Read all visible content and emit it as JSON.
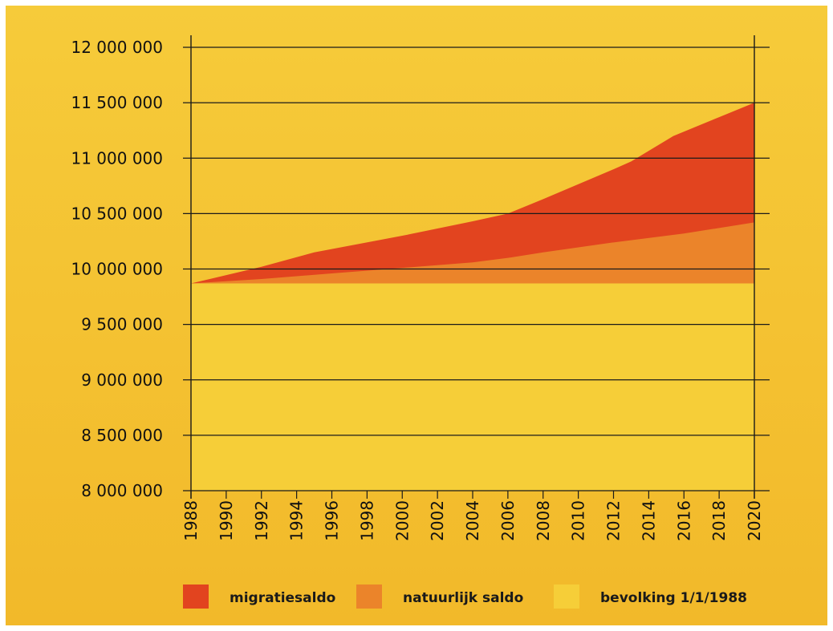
{
  "colors": {
    "migratiesaldo": "#e2441f",
    "natuurlijk_saldo": "#eb842a",
    "bevolking": "#f6ce38",
    "background_top": "#f6cb3a",
    "background_bottom": "#f2b92a",
    "axis": "#1a1a1a"
  },
  "chart_data": {
    "type": "area",
    "stacked": true,
    "title": "",
    "xlabel": "",
    "ylabel": "",
    "xlim": [
      1988,
      2020
    ],
    "ylim": [
      8000000,
      12000000
    ],
    "x_ticks": [
      1988,
      1990,
      1992,
      1994,
      1996,
      1998,
      2000,
      2002,
      2004,
      2006,
      2008,
      2010,
      2012,
      2014,
      2016,
      2018,
      2020
    ],
    "x_tick_labels": [
      "1988",
      "1990",
      "1992",
      "1994",
      "1996",
      "1998",
      "2000",
      "2002",
      "2004",
      "2006",
      "2008",
      "2010",
      "2012",
      "2014",
      "2016",
      "2018",
      "2020"
    ],
    "y_ticks": [
      8000000,
      8500000,
      9000000,
      9500000,
      10000000,
      10500000,
      11000000,
      11500000,
      12000000
    ],
    "y_tick_labels": [
      "8 000 000",
      "8 500 000",
      "9 000 000",
      "9 500 000",
      "10 000 000",
      "10 500 000",
      "11 000 000",
      "11 500 000",
      "12 000 000"
    ],
    "grid": true,
    "grid_axis": "y",
    "legend_position": "bottom",
    "baseline_value": 9870000,
    "series": [
      {
        "name": "bevolking 1/1/1988",
        "x": [
          1988,
          2020
        ],
        "top": [
          9870000,
          9870000
        ]
      },
      {
        "name": "natuurlijk saldo",
        "x": [
          1988,
          1992,
          1996,
          2000,
          2004,
          2006,
          2008,
          2012,
          2016,
          2020
        ],
        "top": [
          9870000,
          9910000,
          9960000,
          10010000,
          10060000,
          10100000,
          10150000,
          10240000,
          10320000,
          10420000
        ]
      },
      {
        "name": "migratiesaldo",
        "x": [
          1988,
          1992,
          1995,
          2000,
          2004,
          2006,
          2008,
          2012,
          2013,
          2015.4,
          2018,
          2020
        ],
        "top": [
          9870000,
          10020000,
          10150000,
          10300000,
          10430000,
          10500000,
          10630000,
          10900000,
          10970000,
          11200000,
          11370000,
          11500000
        ]
      }
    ]
  },
  "legend": {
    "items": [
      {
        "label": "migratiesaldo",
        "color_key": "migratiesaldo"
      },
      {
        "label": "natuurlijk saldo",
        "color_key": "natuurlijk_saldo"
      },
      {
        "label": "bevolking 1/1/1988",
        "color_key": "bevolking"
      }
    ]
  }
}
